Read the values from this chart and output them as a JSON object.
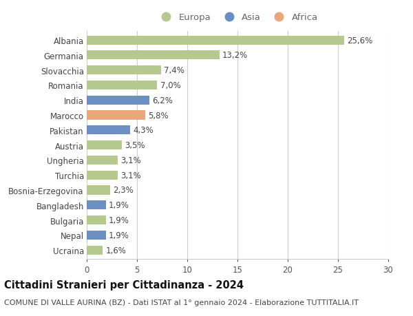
{
  "categories": [
    "Ucraina",
    "Nepal",
    "Bulgaria",
    "Bangladesh",
    "Bosnia-Erzegovina",
    "Turchia",
    "Ungheria",
    "Austria",
    "Pakistan",
    "Marocco",
    "India",
    "Romania",
    "Slovacchia",
    "Germania",
    "Albania"
  ],
  "values": [
    1.6,
    1.9,
    1.9,
    1.9,
    2.3,
    3.1,
    3.1,
    3.5,
    4.3,
    5.8,
    6.2,
    7.0,
    7.4,
    13.2,
    25.6
  ],
  "labels": [
    "1,6%",
    "1,9%",
    "1,9%",
    "1,9%",
    "2,3%",
    "3,1%",
    "3,1%",
    "3,5%",
    "4,3%",
    "5,8%",
    "6,2%",
    "7,0%",
    "7,4%",
    "13,2%",
    "25,6%"
  ],
  "colors": [
    "#b5c98e",
    "#6b8fc2",
    "#b5c98e",
    "#6b8fc2",
    "#b5c98e",
    "#b5c98e",
    "#b5c98e",
    "#b5c98e",
    "#6b8fc2",
    "#e8a87c",
    "#6b8fc2",
    "#b5c98e",
    "#b5c98e",
    "#b5c98e",
    "#b5c98e"
  ],
  "legend_labels": [
    "Europa",
    "Asia",
    "Africa"
  ],
  "legend_colors": [
    "#b5c98e",
    "#6b8fc2",
    "#e8a87c"
  ],
  "title": "Cittadini Stranieri per Cittadinanza - 2024",
  "subtitle": "COMUNE DI VALLE AURINA (BZ) - Dati ISTAT al 1° gennaio 2024 - Elaborazione TUTTITALIA.IT",
  "xlim": [
    0,
    30
  ],
  "xticks": [
    0,
    5,
    10,
    15,
    20,
    25,
    30
  ],
  "bar_height": 0.6,
  "bg_color": "#ffffff",
  "grid_color": "#cccccc",
  "label_fontsize": 8.5,
  "tick_fontsize": 8.5,
  "title_fontsize": 10.5,
  "subtitle_fontsize": 8.0
}
